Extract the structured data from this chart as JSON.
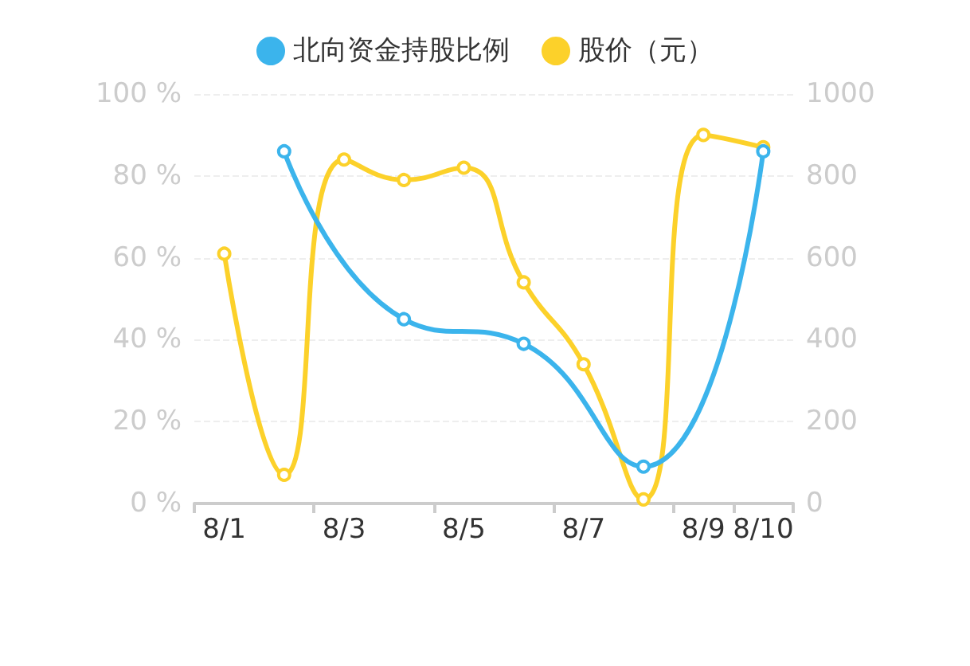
{
  "chart_data": {
    "type": "line",
    "categories": [
      "8/1",
      null,
      "8/3",
      null,
      "8/5",
      null,
      "8/7",
      null,
      "8/9",
      "8/10"
    ],
    "series": [
      {
        "name": "北向资金持股比例",
        "color": "#3bb4ec",
        "values": [
          null,
          86,
          null,
          45,
          null,
          39,
          null,
          9,
          null,
          86
        ]
      },
      {
        "name": "股价（元）",
        "color": "#fcd12a",
        "axis": "y2",
        "values": [
          610,
          70,
          840,
          790,
          820,
          540,
          340,
          10,
          900,
          870
        ]
      }
    ],
    "ylim": [
      0,
      100
    ],
    "yticks": [
      {
        "value": 0,
        "label": "0 %"
      },
      {
        "value": 20,
        "label": "20 %"
      },
      {
        "value": 40,
        "label": "40 %"
      },
      {
        "value": 60,
        "label": "60 %"
      },
      {
        "value": 80,
        "label": "80 %"
      },
      {
        "value": 100,
        "label": "100 %"
      }
    ],
    "y2lim": [
      0,
      1000
    ],
    "y2ticks": [
      0,
      200,
      400,
      600,
      800,
      1000
    ],
    "grid": "y",
    "legend": "top",
    "marker": "circle",
    "line_style": "solid"
  }
}
